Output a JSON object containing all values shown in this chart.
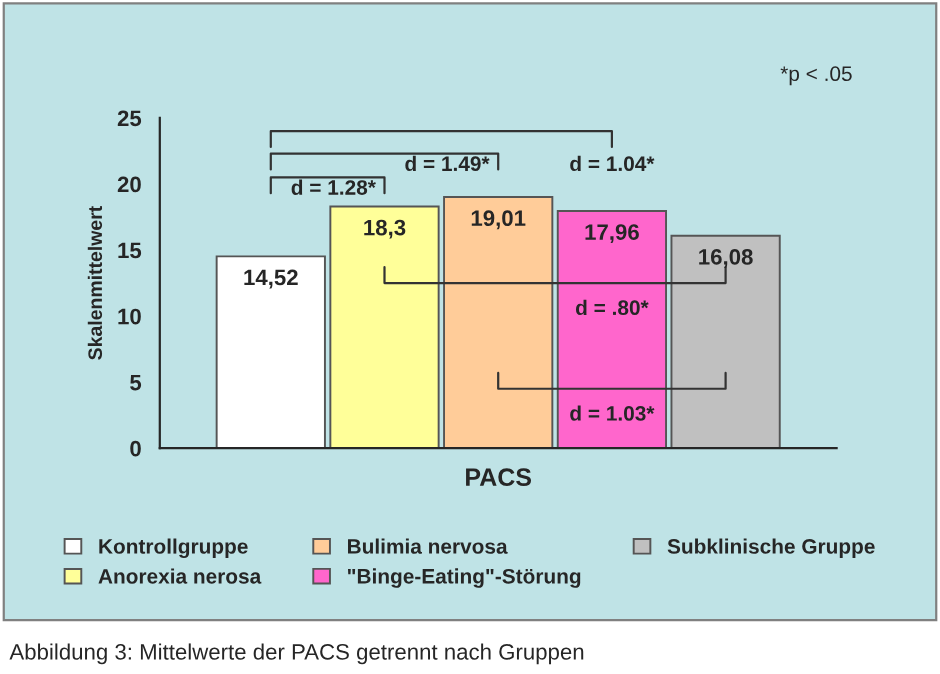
{
  "chart_data": {
    "type": "bar",
    "categories": [
      "PACS"
    ],
    "ylabel": "Skalenmittelwert",
    "series": [
      {
        "name": "Kontrollgruppe",
        "color": "#ffffff",
        "values": [
          14.52
        ],
        "value_labels": [
          "14,52"
        ]
      },
      {
        "name": "Anorexia nerosa",
        "color": "#ffff99",
        "values": [
          18.3
        ],
        "value_labels": [
          "18,3"
        ]
      },
      {
        "name": "Bulimia nervosa",
        "color": "#ffcc99",
        "values": [
          19.01
        ],
        "value_labels": [
          "19,01"
        ]
      },
      {
        "name": "\"Binge-Eating\"-Störung",
        "color": "#ff66cc",
        "values": [
          17.96
        ],
        "value_labels": [
          "17,96"
        ]
      },
      {
        "name": "Subklinische Gruppe",
        "color": "#c0c0c0",
        "values": [
          16.08
        ],
        "value_labels": [
          "16,08"
        ]
      }
    ],
    "ylim": [
      0,
      25
    ],
    "yticks": [
      0,
      5,
      10,
      15,
      20,
      25
    ],
    "grid": false,
    "legend": "bottom",
    "annotations": [
      "d = 1.28*",
      "d = 1.49*",
      "d = 1.04*",
      "d = .80*",
      "d = 1.03*",
      "*p < .05",
      "Abbildung 3: Mittelwerte der PACS getrennt nach Gruppen"
    ]
  }
}
